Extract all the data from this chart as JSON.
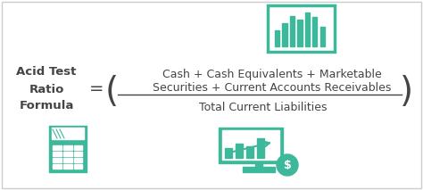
{
  "background_color": "#ffffff",
  "border_color": "#cccccc",
  "teal_color": "#3db89a",
  "text_color": "#444444",
  "title_text": "Acid Test\nRatio\nFormula",
  "equals_sign": "=",
  "numerator_line1": "Cash + Cash Equivalents + Marketable",
  "numerator_line2": "Securities + Current Accounts Receivables",
  "denominator": "Total Current Liabilities",
  "left_paren": "(",
  "right_paren": ")",
  "title_fontsize": 9.5,
  "formula_fontsize": 9,
  "equals_fontsize": 14,
  "paren_fontsize": 28,
  "fig_width": 4.74,
  "fig_height": 2.13,
  "dpi": 100
}
